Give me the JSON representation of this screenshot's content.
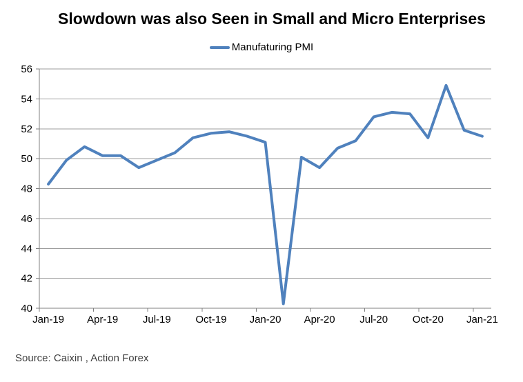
{
  "source_note": "Source: Caixin , Action Forex",
  "colors": {
    "line": "#4F81BD",
    "gridline": "#9C9C9C",
    "axis": "#808080",
    "title_text": "#000000",
    "source_text": "#404040"
  },
  "chart_data": {
    "type": "line",
    "title": "Slowdown was also Seen in Small and Micro Enterprises",
    "xlabel": "",
    "ylabel": "",
    "ylim": [
      40,
      56
    ],
    "y_tick_step": 2,
    "x_tick_every": 3,
    "grid": "horizontal",
    "legend_position": "top",
    "categories": [
      "Jan-19",
      "Feb-19",
      "Mar-19",
      "Apr-19",
      "May-19",
      "Jun-19",
      "Jul-19",
      "Aug-19",
      "Sep-19",
      "Oct-19",
      "Nov-19",
      "Dec-19",
      "Jan-20",
      "Feb-20",
      "Mar-20",
      "Apr-20",
      "May-20",
      "Jun-20",
      "Jul-20",
      "Aug-20",
      "Sep-20",
      "Oct-20",
      "Nov-20",
      "Dec-20",
      "Jan-21"
    ],
    "series": [
      {
        "name": "Manufaturing PMI",
        "values": [
          48.3,
          49.9,
          50.8,
          50.2,
          50.2,
          49.4,
          49.9,
          50.4,
          51.4,
          51.7,
          51.8,
          51.5,
          51.1,
          40.3,
          50.1,
          49.4,
          50.7,
          51.2,
          52.8,
          53.1,
          53.0,
          51.4,
          54.9,
          51.9,
          51.5
        ]
      }
    ]
  }
}
